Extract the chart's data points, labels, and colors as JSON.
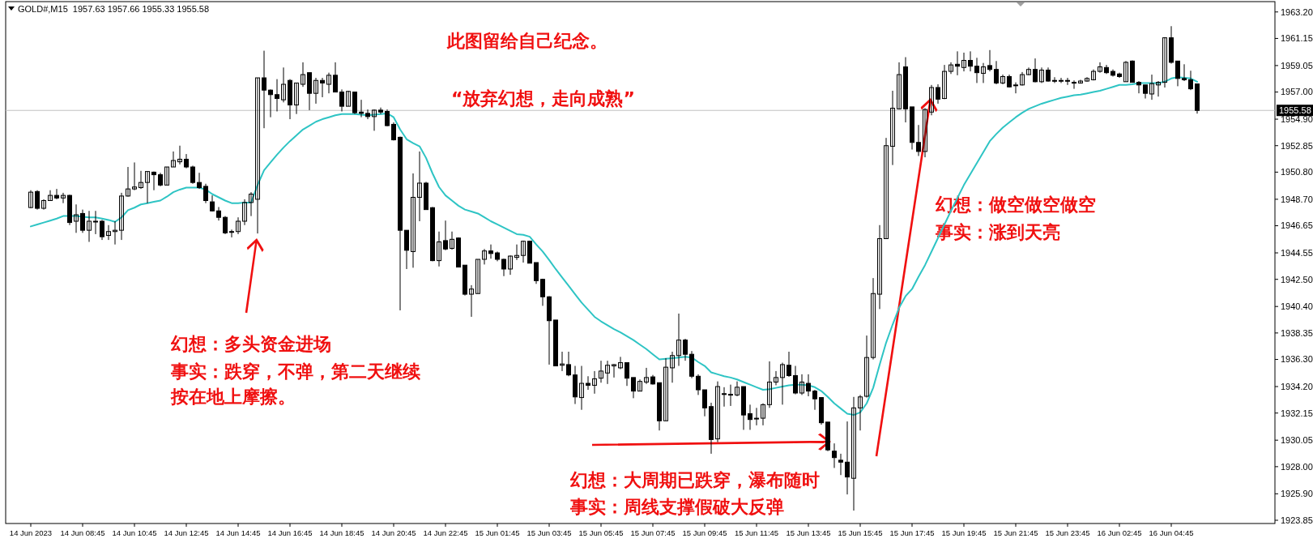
{
  "chart_data": {
    "type": "candlestick",
    "title": "GOLD#,M15  1957.63 1957.66 1955.33 1955.58",
    "color": "#000000",
    "categories": [
      "14 Jun 2023",
      null,
      null,
      null,
      null,
      null,
      null,
      null,
      "14 Jun 08:45",
      null,
      null,
      null,
      null,
      null,
      null,
      null,
      "14 Jun 10:45",
      null,
      null,
      null,
      null,
      null,
      null,
      null,
      "14 Jun 12:45",
      null,
      null,
      null,
      null,
      null,
      null,
      null,
      "14 Jun 14:45",
      null,
      null,
      null,
      null,
      null,
      null,
      null,
      "14 Jun 16:45",
      null,
      null,
      null,
      null,
      null,
      null,
      null,
      "14 Jun 18:45",
      null,
      null,
      null,
      null,
      null,
      null,
      null,
      "14 Jun 20:45",
      null,
      null,
      null,
      null,
      null,
      null,
      null,
      "14 Jun 22:45",
      null,
      null,
      null,
      null,
      null,
      null,
      null,
      "15 Jun 01:45",
      null,
      null,
      null,
      null,
      null,
      null,
      null,
      "15 Jun 03:45",
      null,
      null,
      null,
      null,
      null,
      null,
      null,
      "15 Jun 05:45",
      null,
      null,
      null,
      null,
      null,
      null,
      null,
      "15 Jun 07:45",
      null,
      null,
      null,
      null,
      null,
      null,
      null,
      "15 Jun 09:45",
      null,
      null,
      null,
      null,
      null,
      null,
      null,
      "15 Jun 11:45",
      null,
      null,
      null,
      null,
      null,
      null,
      null,
      "15 Jun 13:45",
      null,
      null,
      null,
      null,
      null,
      null,
      null,
      "15 Jun 15:45",
      null,
      null,
      null,
      null,
      null,
      null,
      null,
      "15 Jun 17:45",
      null,
      null,
      null,
      null,
      null,
      null,
      null,
      "15 Jun 19:45",
      null,
      null,
      null,
      null,
      null,
      null,
      null,
      "15 Jun 21:45",
      null,
      null,
      null,
      null,
      null,
      null,
      null,
      "15 Jun 23:45",
      null,
      null,
      null,
      null,
      null,
      null,
      null,
      "16 Jun 02:45",
      null,
      null,
      null,
      null,
      null,
      null,
      null,
      "16 Jun 04:45",
      null,
      null,
      null,
      null
    ],
    "ohlc": [
      [
        1948.06,
        1949.4,
        1948.0,
        1949.25
      ],
      [
        1949.3,
        1949.4,
        1947.9,
        1948.0
      ],
      [
        1948.0,
        1948.7,
        1947.9,
        1948.6
      ],
      [
        1948.6,
        1949.4,
        1948.6,
        1949.0
      ],
      [
        1949.0,
        1949.5,
        1948.7,
        1948.8
      ],
      [
        1948.8,
        1949.2,
        1948.4,
        1949.0
      ],
      [
        1949.0,
        1949.05,
        1946.7,
        1946.9
      ],
      [
        1947.0,
        1948.3,
        1946.1,
        1947.5
      ],
      [
        1947.6,
        1947.9,
        1946.1,
        1946.3
      ],
      [
        1946.3,
        1947.8,
        1945.4,
        1947.0
      ],
      [
        1946.95,
        1947.8,
        1946.0,
        1947.0
      ],
      [
        1947.0,
        1947.1,
        1945.55,
        1945.8
      ],
      [
        1945.9,
        1946.7,
        1945.55,
        1946.2
      ],
      [
        1946.2,
        1947.0,
        1945.2,
        1946.3
      ],
      [
        1946.3,
        1949.2,
        1945.55,
        1948.95
      ],
      [
        1948.95,
        1951.2,
        1948.9,
        1949.5
      ],
      [
        1949.5,
        1951.55,
        1949.4,
        1949.65
      ],
      [
        1949.6,
        1950.9,
        1949.5,
        1950.0
      ],
      [
        1950.0,
        1950.85,
        1948.4,
        1950.85
      ],
      [
        1950.8,
        1950.85,
        1949.4,
        1950.6
      ],
      [
        1950.6,
        1950.75,
        1949.7,
        1949.8
      ],
      [
        1949.8,
        1951.2,
        1949.8,
        1951.2
      ],
      [
        1951.2,
        1952.4,
        1951.2,
        1951.7
      ],
      [
        1951.6,
        1952.85,
        1951.4,
        1951.8
      ],
      [
        1951.8,
        1952.2,
        1951.1,
        1951.2
      ],
      [
        1951.2,
        1951.3,
        1949.9,
        1950.0
      ],
      [
        1950.0,
        1950.75,
        1949.5,
        1949.6
      ],
      [
        1949.7,
        1949.9,
        1948.4,
        1948.6
      ],
      [
        1948.5,
        1949.0,
        1947.75,
        1947.8
      ],
      [
        1947.8,
        1948.1,
        1947.05,
        1947.3
      ],
      [
        1947.3,
        1947.4,
        1946.0,
        1946.1
      ],
      [
        1946.2,
        1946.35,
        1945.75,
        1946.15
      ],
      [
        1946.2,
        1947.3,
        1946.0,
        1947.0
      ],
      [
        1947.0,
        1948.7,
        1946.7,
        1948.45
      ],
      [
        1948.45,
        1949.25,
        1947.4,
        1949.1
      ],
      [
        1948.7,
        1958.1,
        1946.05,
        1958.1
      ],
      [
        1958.1,
        1960.2,
        1954.2,
        1957.15
      ],
      [
        1957.15,
        1957.2,
        1955.05,
        1956.8
      ],
      [
        1956.8,
        1958.0,
        1955.5,
        1956.5
      ],
      [
        1956.4,
        1958.9,
        1956.2,
        1957.6
      ],
      [
        1957.9,
        1958.0,
        1954.9,
        1956.0
      ],
      [
        1956.0,
        1957.7,
        1955.3,
        1957.7
      ],
      [
        1957.6,
        1959.3,
        1957.4,
        1958.35
      ],
      [
        1958.5,
        1958.5,
        1955.6,
        1956.9
      ],
      [
        1956.9,
        1958.1,
        1956.1,
        1957.9
      ],
      [
        1957.9,
        1958.1,
        1956.6,
        1957.7
      ],
      [
        1957.6,
        1958.5,
        1956.9,
        1958.3
      ],
      [
        1958.3,
        1959.3,
        1957.0,
        1957.0
      ],
      [
        1957.0,
        1957.2,
        1955.5,
        1955.9
      ],
      [
        1955.9,
        1957.1,
        1955.9,
        1957.05
      ],
      [
        1957.0,
        1957.0,
        1955.3,
        1955.4
      ],
      [
        1955.45,
        1956.4,
        1955.05,
        1955.35
      ],
      [
        1955.35,
        1955.65,
        1954.9,
        1955.1
      ],
      [
        1955.1,
        1955.65,
        1954.0,
        1955.6
      ],
      [
        1955.6,
        1955.8,
        1955.3,
        1955.45
      ],
      [
        1955.5,
        1955.65,
        1954.35,
        1954.4
      ],
      [
        1954.5,
        1954.65,
        1953.25,
        1953.3
      ],
      [
        1953.5,
        1953.55,
        1940.1,
        1946.3
      ],
      [
        1946.3,
        1946.3,
        1943.3,
        1944.75
      ],
      [
        1944.65,
        1950.7,
        1943.4,
        1948.85
      ],
      [
        1948.85,
        1952.4,
        1947.0,
        1949.95
      ],
      [
        1949.95,
        1950.05,
        1947.9,
        1947.9
      ],
      [
        1948.05,
        1948.1,
        1943.9,
        1943.95
      ],
      [
        1943.95,
        1946.2,
        1943.5,
        1945.4
      ],
      [
        1945.5,
        1947.05,
        1944.75,
        1944.85
      ],
      [
        1944.9,
        1946.2,
        1944.8,
        1945.6
      ],
      [
        1945.7,
        1945.75,
        1943.45,
        1943.45
      ],
      [
        1943.6,
        1943.6,
        1941.25,
        1941.35
      ],
      [
        1941.35,
        1942.05,
        1939.6,
        1941.75
      ],
      [
        1941.4,
        1944.05,
        1941.4,
        1944.05
      ],
      [
        1944.05,
        1944.85,
        1943.65,
        1944.7
      ],
      [
        1944.7,
        1945.2,
        1944.1,
        1944.5
      ],
      [
        1944.55,
        1944.65,
        1943.9,
        1944.05
      ],
      [
        1944.05,
        1944.1,
        1942.75,
        1943.3
      ],
      [
        1943.3,
        1944.35,
        1942.85,
        1944.3
      ],
      [
        1944.2,
        1945.2,
        1944.0,
        1944.35
      ],
      [
        1944.35,
        1945.5,
        1943.8,
        1945.45
      ],
      [
        1945.45,
        1945.5,
        1943.75,
        1943.75
      ],
      [
        1943.8,
        1943.8,
        1942.15,
        1942.4
      ],
      [
        1942.5,
        1942.55,
        1940.45,
        1941.15
      ],
      [
        1941.15,
        1941.2,
        1935.9,
        1939.3
      ],
      [
        1939.35,
        1939.35,
        1935.8,
        1935.8
      ],
      [
        1935.85,
        1936.9,
        1935.4,
        1935.95
      ],
      [
        1935.9,
        1936.9,
        1935.0,
        1935.1
      ],
      [
        1935.1,
        1935.8,
        1932.85,
        1933.4
      ],
      [
        1933.35,
        1935.8,
        1932.4,
        1934.45
      ],
      [
        1934.45,
        1935.0,
        1933.95,
        1934.3
      ],
      [
        1934.3,
        1935.4,
        1933.65,
        1934.8
      ],
      [
        1934.85,
        1936.2,
        1934.5,
        1935.4
      ],
      [
        1935.25,
        1936.2,
        1934.4,
        1935.85
      ],
      [
        1935.8,
        1935.95,
        1934.9,
        1935.9
      ],
      [
        1935.65,
        1936.5,
        1935.55,
        1936.05
      ],
      [
        1936.05,
        1936.05,
        1934.25,
        1934.85
      ],
      [
        1934.9,
        1934.9,
        1933.3,
        1933.85
      ],
      [
        1933.85,
        1934.75,
        1933.85,
        1934.6
      ],
      [
        1934.55,
        1935.65,
        1934.4,
        1934.9
      ],
      [
        1934.95,
        1935.1,
        1934.35,
        1934.4
      ],
      [
        1934.5,
        1934.5,
        1930.8,
        1931.55
      ],
      [
        1931.55,
        1936.4,
        1931.55,
        1935.7
      ],
      [
        1935.65,
        1936.9,
        1934.5,
        1936.6
      ],
      [
        1936.6,
        1939.85,
        1935.8,
        1937.8
      ],
      [
        1937.8,
        1937.9,
        1936.2,
        1936.7
      ],
      [
        1936.7,
        1936.95,
        1934.85,
        1935.0
      ],
      [
        1935.0,
        1935.15,
        1933.55,
        1933.95
      ],
      [
        1933.95,
        1933.95,
        1931.9,
        1932.55
      ],
      [
        1932.65,
        1932.95,
        1929.0,
        1930.1
      ],
      [
        1930.15,
        1934.6,
        1929.9,
        1934.2
      ],
      [
        1933.65,
        1934.15,
        1932.65,
        1933.6
      ],
      [
        1933.55,
        1934.35,
        1932.7,
        1933.6
      ],
      [
        1933.55,
        1934.6,
        1933.45,
        1934.15
      ],
      [
        1934.2,
        1934.2,
        1930.85,
        1932.0
      ],
      [
        1932.1,
        1932.8,
        1930.85,
        1931.65
      ],
      [
        1931.7,
        1932.55,
        1931.2,
        1931.75
      ],
      [
        1931.75,
        1932.9,
        1931.2,
        1932.8
      ],
      [
        1932.8,
        1936.15,
        1932.55,
        1934.55
      ],
      [
        1934.55,
        1935.4,
        1934.3,
        1934.9
      ],
      [
        1934.9,
        1936.05,
        1932.8,
        1935.9
      ],
      [
        1935.85,
        1936.9,
        1934.95,
        1935.05
      ],
      [
        1935.05,
        1935.8,
        1933.6,
        1933.7
      ],
      [
        1933.7,
        1935.15,
        1933.55,
        1934.55
      ],
      [
        1934.45,
        1935.15,
        1933.45,
        1933.85
      ],
      [
        1933.85,
        1933.95,
        1932.4,
        1933.25
      ],
      [
        1933.35,
        1933.35,
        1931.25,
        1931.4
      ],
      [
        1931.45,
        1931.45,
        1929.2,
        1929.3
      ],
      [
        1929.2,
        1929.8,
        1927.9,
        1928.7
      ],
      [
        1928.5,
        1929.0,
        1927.35,
        1928.35
      ],
      [
        1928.35,
        1931.5,
        1925.85,
        1927.2
      ],
      [
        1927.1,
        1933.4,
        1924.6,
        1932.55
      ],
      [
        1932.55,
        1933.55,
        1930.8,
        1933.4
      ],
      [
        1933.45,
        1938.15,
        1933.35,
        1936.45
      ],
      [
        1936.45,
        1942.6,
        1936.3,
        1941.4
      ],
      [
        1941.35,
        1946.7,
        1940.2,
        1945.65
      ],
      [
        1945.65,
        1953.45,
        1945.65,
        1952.85
      ],
      [
        1952.8,
        1957.1,
        1951.35,
        1955.75
      ],
      [
        1955.7,
        1959.3,
        1955.65,
        1958.35
      ],
      [
        1958.95,
        1959.7,
        1954.65,
        1955.7
      ],
      [
        1955.85,
        1955.85,
        1952.55,
        1953.1
      ],
      [
        1953.1,
        1954.45,
        1952.05,
        1952.4
      ],
      [
        1952.4,
        1955.75,
        1951.95,
        1955.65
      ],
      [
        1955.45,
        1957.55,
        1955.2,
        1957.35
      ],
      [
        1957.35,
        1957.6,
        1956.1,
        1956.45
      ],
      [
        1956.5,
        1959.1,
        1956.45,
        1958.6
      ],
      [
        1958.6,
        1959.3,
        1958.4,
        1959.1
      ],
      [
        1959.15,
        1960.15,
        1958.3,
        1959.0
      ],
      [
        1958.9,
        1960.05,
        1958.6,
        1959.45
      ],
      [
        1959.45,
        1960.15,
        1958.6,
        1959.0
      ],
      [
        1959.0,
        1959.65,
        1957.7,
        1958.5
      ],
      [
        1958.45,
        1959.25,
        1957.7,
        1958.95
      ],
      [
        1959.05,
        1960.25,
        1958.6,
        1958.75
      ],
      [
        1958.75,
        1959.4,
        1957.6,
        1957.7
      ],
      [
        1957.7,
        1958.35,
        1957.6,
        1958.2
      ],
      [
        1958.2,
        1958.35,
        1957.35,
        1957.4
      ],
      [
        1957.5,
        1957.75,
        1956.9,
        1957.55
      ],
      [
        1957.55,
        1958.55,
        1957.5,
        1958.35
      ],
      [
        1958.35,
        1958.9,
        1958.3,
        1958.75
      ],
      [
        1958.75,
        1959.6,
        1957.75,
        1957.8
      ],
      [
        1957.8,
        1958.9,
        1957.7,
        1958.7
      ],
      [
        1958.7,
        1958.9,
        1957.8,
        1957.85
      ],
      [
        1957.9,
        1958.15,
        1957.7,
        1957.85
      ],
      [
        1957.85,
        1958.1,
        1957.7,
        1957.9
      ],
      [
        1957.9,
        1958.1,
        1957.55,
        1957.85
      ],
      [
        1957.75,
        1957.9,
        1957.25,
        1957.7
      ],
      [
        1957.7,
        1957.95,
        1957.65,
        1957.85
      ],
      [
        1957.85,
        1958.15,
        1957.8,
        1958.05
      ],
      [
        1957.95,
        1958.75,
        1957.9,
        1958.6
      ],
      [
        1958.6,
        1959.3,
        1958.5,
        1958.95
      ],
      [
        1958.9,
        1959.1,
        1958.4,
        1958.5
      ],
      [
        1958.6,
        1958.75,
        1958.2,
        1958.3
      ],
      [
        1958.4,
        1958.5,
        1958.1,
        1958.2
      ],
      [
        1957.8,
        1959.4,
        1957.8,
        1959.3
      ],
      [
        1959.4,
        1959.45,
        1957.75,
        1957.75
      ],
      [
        1957.75,
        1957.85,
        1956.9,
        1957.55
      ],
      [
        1957.55,
        1957.55,
        1956.5,
        1956.9
      ],
      [
        1956.85,
        1958.35,
        1956.4,
        1957.65
      ],
      [
        1957.55,
        1957.85,
        1956.65,
        1957.75
      ],
      [
        1957.75,
        1961.25,
        1957.35,
        1961.2
      ],
      [
        1961.2,
        1962.1,
        1959.2,
        1959.3
      ],
      [
        1959.4,
        1959.4,
        1957.45,
        1958.05
      ],
      [
        1958.05,
        1959.15,
        1957.85,
        1957.95
      ],
      [
        1957.95,
        1958.65,
        1957.15,
        1957.25
      ],
      [
        1957.63,
        1957.66,
        1955.33,
        1955.58
      ]
    ],
    "series": [
      {
        "type": "line",
        "color": "#2ec4c4",
        "values": [
          1946.6,
          1946.75,
          1946.9,
          1947.05,
          1947.2,
          1947.4,
          1947.4,
          1947.4,
          1947.35,
          1947.3,
          1947.3,
          1947.2,
          1947.1,
          1946.95,
          1947.3,
          1947.85,
          1948.05,
          1948.3,
          1948.4,
          1948.5,
          1948.6,
          1948.9,
          1949.25,
          1949.45,
          1949.6,
          1949.6,
          1949.6,
          1949.45,
          1949.1,
          1948.85,
          1948.6,
          1948.4,
          1948.4,
          1948.45,
          1948.45,
          1949.8,
          1950.95,
          1951.55,
          1952.15,
          1952.7,
          1953.2,
          1953.65,
          1954.1,
          1954.4,
          1954.7,
          1954.9,
          1955.05,
          1955.2,
          1955.3,
          1955.3,
          1955.3,
          1955.25,
          1955.2,
          1955.25,
          1955.3,
          1955.35,
          1955.05,
          1954.1,
          1953.35,
          1953.05,
          1952.8,
          1951.9,
          1950.7,
          1949.65,
          1949.0,
          1948.6,
          1948.2,
          1947.9,
          1947.75,
          1947.6,
          1947.3,
          1947.0,
          1946.75,
          1946.5,
          1946.25,
          1946.0,
          1945.95,
          1945.8,
          1945.2,
          1944.65,
          1944.0,
          1943.3,
          1942.65,
          1942.0,
          1941.35,
          1940.7,
          1940.15,
          1939.6,
          1939.25,
          1938.95,
          1938.65,
          1938.4,
          1938.1,
          1937.8,
          1937.45,
          1937.1,
          1936.7,
          1936.3,
          1936.35,
          1936.4,
          1936.45,
          1936.5,
          1936.45,
          1936.1,
          1935.8,
          1935.3,
          1935.15,
          1935.0,
          1934.9,
          1934.75,
          1934.55,
          1934.35,
          1934.15,
          1933.95,
          1934.0,
          1934.1,
          1934.2,
          1934.3,
          1934.35,
          1934.35,
          1934.3,
          1934.15,
          1933.85,
          1933.4,
          1932.9,
          1932.5,
          1932.1,
          1932.0,
          1932.2,
          1932.9,
          1934.1,
          1935.9,
          1937.6,
          1939.0,
          1940.3,
          1941.2,
          1941.75,
          1942.7,
          1943.6,
          1944.65,
          1945.7,
          1946.75,
          1947.8,
          1948.8,
          1949.8,
          1950.65,
          1951.5,
          1952.35,
          1953.2,
          1953.75,
          1954.25,
          1954.65,
          1955.05,
          1955.4,
          1955.7,
          1955.9,
          1956.1,
          1956.25,
          1956.4,
          1956.55,
          1956.65,
          1956.75,
          1956.8,
          1956.9,
          1957.0,
          1957.1,
          1957.25,
          1957.4,
          1957.55,
          1957.55,
          1957.6,
          1957.7,
          1957.7,
          1957.7,
          1957.7,
          1957.8,
          1958.05,
          1958.15,
          1958.1,
          1958.05,
          1957.8
        ]
      }
    ],
    "ylim": [
      1923.6,
      1964.0
    ],
    "yticks": [
      {
        "value": 1963.2,
        "label": "1963.20"
      },
      1961.15,
      1959.05,
      {
        "value": 1957,
        "label": "1957.00"
      },
      {
        "value": 1954.9,
        "label": "1954.90"
      },
      1952.85,
      {
        "value": 1950.8,
        "label": "1950.80"
      },
      {
        "value": 1948.7,
        "label": "1948.70"
      },
      1946.65,
      1944.55,
      {
        "value": 1942.5,
        "label": "1942.50"
      },
      {
        "value": 1940.4,
        "label": "1940.40"
      },
      1938.35,
      {
        "value": 1936.3,
        "label": "1936.30"
      },
      {
        "value": 1934.2,
        "label": "1934.20"
      },
      1932.15,
      1930.05,
      {
        "value": 1928,
        "label": "1928.00"
      },
      {
        "value": 1925.9,
        "label": "1925.90"
      },
      1923.85
    ],
    "ref_lines": [
      {
        "axis": "y",
        "value": 1955.58,
        "label": "1955.58",
        "color": "#c0c0c0"
      }
    ],
    "annotations": [
      "此图留给自己纪念。",
      "“放弃幻想，走向成熟”",
      "幻想：多头资金进场",
      "事实：跌穿，不弹，第二天继续",
      "按在地上摩擦。",
      "幻想：大周期已跌穿，瀑布随时",
      "事实：周线支撑假破大反弹",
      "幻想：做空做空做空",
      "事实：涨到天亮"
    ]
  }
}
